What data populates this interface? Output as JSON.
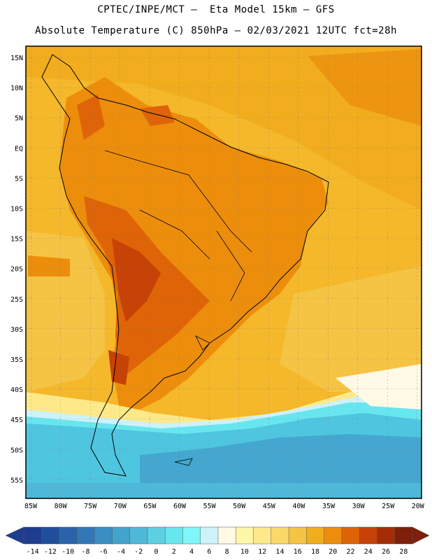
{
  "title_line1": "CPTEC/INPE/MCT –  Eta Model 15km – GFS",
  "title_line2": "Absolute Temperature (C) 850hPa – 02/03/2021 12UTC fct=28h",
  "lat_labels": [
    "15N",
    "10N",
    "5N",
    "EQ",
    "5S",
    "10S",
    "15S",
    "20S",
    "25S",
    "30S",
    "35S",
    "40S",
    "45S",
    "50S",
    "55S"
  ],
  "lon_labels": [
    "85W",
    "80W",
    "75W",
    "70W",
    "65W",
    "60W",
    "55W",
    "50W",
    "45W",
    "40W",
    "35W",
    "30W",
    "25W",
    "20W"
  ],
  "colorbar": {
    "labels": [
      "-14",
      "-12",
      "-10",
      "-8",
      "-6",
      "-4",
      "-2",
      "0",
      "2",
      "4",
      "6",
      "8",
      "10",
      "12",
      "14",
      "16",
      "18",
      "20",
      "22",
      "24",
      "26",
      "28"
    ],
    "colors": [
      "#1e3d8f",
      "#1f4f9c",
      "#2a63ab",
      "#3277b6",
      "#3b8ec2",
      "#44a3cd",
      "#4fb8d8",
      "#5ccfe3",
      "#68e6ef",
      "#7ff7f7",
      "#cdf2fa",
      "#fff9e6",
      "#fff7a8",
      "#fde98a",
      "#fad86a",
      "#f5c444",
      "#f1ad1e",
      "#ec8e0c",
      "#df6407",
      "#c64206",
      "#a42d08",
      "#7d1f0a"
    ]
  },
  "colors": {
    "ocean_south_cold": "#3fb4d8",
    "ocean_mid": "#4fc6e0",
    "warm_bg": "#f4b82a",
    "hot": "#e07210",
    "very_hot": "#b8420c"
  }
}
